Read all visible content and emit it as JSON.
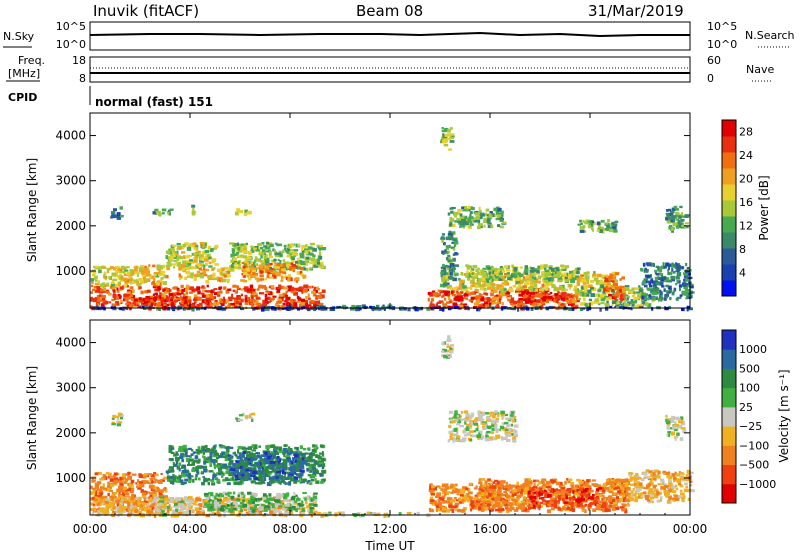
{
  "header": {
    "station": "Inuvik (fitACF)",
    "beam": "Beam 08",
    "date": "31/Mar/2019"
  },
  "status_panels": {
    "nsky_label": "N.Sky",
    "nsearch_label": "N.Search",
    "freq_label_line1": "Freq.",
    "freq_label_line2": "[MHz]",
    "nave_label": "Nave",
    "cpid_label": "CPID",
    "cpid_value": "normal (fast) 151",
    "noise_ticks_left": [
      "10^5",
      "10^0"
    ],
    "noise_ticks_right": [
      "10^5",
      "10^0"
    ],
    "freq_ticks": [
      "18",
      "8"
    ],
    "nave_ticks": [
      "60",
      "0"
    ]
  },
  "colors": {
    "power": [
      "#0010f0",
      "#1840b0",
      "#2a5a9a",
      "#3a8a6a",
      "#48aa50",
      "#a8c838",
      "#e8d030",
      "#f0a020",
      "#f07010",
      "#e83010",
      "#e00000"
    ],
    "velocity": [
      "#e00000",
      "#f04010",
      "#f08020",
      "#f0b020",
      "#c8c8c0",
      "#40b040",
      "#2e8a40",
      "#2a6aa0",
      "#2030c0"
    ]
  },
  "chart_data": [
    {
      "type": "heatmap",
      "quantity": "power",
      "xlabel": "",
      "ylabel": "Slant Range [km]",
      "x_ticks": [
        "00:00",
        "04:00",
        "08:00",
        "12:00",
        "16:00",
        "20:00",
        "00:00"
      ],
      "xlim_hours": [
        0,
        24
      ],
      "ylim_km": [
        180,
        4500
      ],
      "y_ticks": [
        1000,
        2000,
        3000,
        4000
      ],
      "colorbar_label": "Power [dB]",
      "colorbar_ticks": [
        4,
        8,
        12,
        16,
        20,
        24,
        28
      ],
      "colorbar_range": [
        0,
        30
      ],
      "regions": [
        {
          "t0": 0.0,
          "t1": 9.3,
          "r0": 200,
          "r1": 700,
          "value": 26
        },
        {
          "t0": 0.0,
          "t1": 3.0,
          "r0": 700,
          "r1": 1150,
          "value": 18
        },
        {
          "t0": 1.5,
          "t1": 4.0,
          "r0": 200,
          "r1": 450,
          "value": 28
        },
        {
          "t0": 3.0,
          "t1": 5.0,
          "r0": 1100,
          "r1": 1650,
          "value": 16
        },
        {
          "t0": 5.5,
          "t1": 9.3,
          "r0": 1050,
          "r1": 1650,
          "value": 14
        },
        {
          "t0": 6.0,
          "t1": 8.5,
          "r0": 800,
          "r1": 1200,
          "value": 22
        },
        {
          "t0": 3.5,
          "t1": 5.5,
          "r0": 800,
          "r1": 1100,
          "value": 20
        },
        {
          "t0": 0.8,
          "t1": 1.2,
          "r0": 2200,
          "r1": 2450,
          "value": 8
        },
        {
          "t0": 2.5,
          "t1": 3.2,
          "r0": 2250,
          "r1": 2400,
          "value": 12
        },
        {
          "t0": 4.0,
          "t1": 4.2,
          "r0": 2300,
          "r1": 2500,
          "value": 12
        },
        {
          "t0": 5.8,
          "t1": 6.4,
          "r0": 2300,
          "r1": 2400,
          "value": 16
        },
        {
          "t0": 9.0,
          "t1": 13.5,
          "r0": 190,
          "r1": 260,
          "value": 8
        },
        {
          "t0": 13.5,
          "t1": 19.5,
          "r0": 200,
          "r1": 600,
          "value": 26
        },
        {
          "t0": 17.0,
          "t1": 19.0,
          "r0": 350,
          "r1": 650,
          "value": 28
        },
        {
          "t0": 14.0,
          "t1": 21.0,
          "r0": 600,
          "r1": 1000,
          "value": 18
        },
        {
          "t0": 15.0,
          "t1": 19.5,
          "r0": 800,
          "r1": 1150,
          "value": 14
        },
        {
          "t0": 14.0,
          "t1": 14.6,
          "r0": 700,
          "r1": 1900,
          "value": 10
        },
        {
          "t0": 14.3,
          "t1": 16.5,
          "r0": 2000,
          "r1": 2450,
          "value": 12
        },
        {
          "t0": 19.5,
          "t1": 22.5,
          "r0": 250,
          "r1": 700,
          "value": 14
        },
        {
          "t0": 20.5,
          "t1": 21.3,
          "r0": 400,
          "r1": 900,
          "value": 24
        },
        {
          "t0": 22.0,
          "t1": 24.0,
          "r0": 400,
          "r1": 1200,
          "value": 8
        },
        {
          "t0": 19.5,
          "t1": 21.0,
          "r0": 1900,
          "r1": 2150,
          "value": 12
        },
        {
          "t0": 23.0,
          "t1": 23.8,
          "r0": 1900,
          "r1": 2450,
          "value": 10
        },
        {
          "t0": 14.0,
          "t1": 14.4,
          "r0": 3700,
          "r1": 4200,
          "value": 14
        },
        {
          "t0": 0.0,
          "t1": 24.0,
          "r0": 180,
          "r1": 230,
          "value": 4
        }
      ]
    },
    {
      "type": "heatmap",
      "quantity": "velocity",
      "xlabel": "Time UT",
      "ylabel": "Slant Range [km]",
      "x_ticks": [
        "00:00",
        "04:00",
        "08:00",
        "12:00",
        "16:00",
        "20:00",
        "00:00"
      ],
      "xlim_hours": [
        0,
        24
      ],
      "ylim_km": [
        180,
        4500
      ],
      "y_ticks": [
        1000,
        2000,
        3000,
        4000
      ],
      "colorbar_label": "Velocity [m s⁻¹]",
      "colorbar_ticks": [
        "1000",
        "500",
        "100",
        "25",
        "−25",
        "−100",
        "−500",
        "−1000"
      ],
      "regions": [
        {
          "t0": 0.0,
          "t1": 3.0,
          "r0": 300,
          "r1": 1150,
          "cls": 2
        },
        {
          "t0": 0.0,
          "t1": 9.0,
          "r0": 200,
          "r1": 600,
          "cls": 3
        },
        {
          "t0": 3.0,
          "t1": 9.3,
          "r0": 900,
          "r1": 1750,
          "cls": 6
        },
        {
          "t0": 4.5,
          "t1": 9.0,
          "r0": 300,
          "r1": 700,
          "cls": 5
        },
        {
          "t0": 2.5,
          "t1": 4.0,
          "r0": 200,
          "r1": 600,
          "cls": 4
        },
        {
          "t0": 5.5,
          "t1": 8.5,
          "r0": 1000,
          "r1": 1600,
          "cls": 7
        },
        {
          "t0": 9.0,
          "t1": 13.5,
          "r0": 190,
          "r1": 260,
          "cls": 4
        },
        {
          "t0": 13.5,
          "t1": 17.5,
          "r0": 300,
          "r1": 900,
          "cls": 2
        },
        {
          "t0": 15.5,
          "t1": 21.5,
          "r0": 300,
          "r1": 1000,
          "cls": 2
        },
        {
          "t0": 17.5,
          "t1": 20.5,
          "r0": 400,
          "r1": 800,
          "cls": 1
        },
        {
          "t0": 14.3,
          "t1": 17.0,
          "r0": 1850,
          "r1": 2500,
          "cls": 4
        },
        {
          "t0": 20.5,
          "t1": 21.5,
          "r0": 500,
          "r1": 1000,
          "cls": 2
        },
        {
          "t0": 21.5,
          "t1": 24.0,
          "r0": 500,
          "r1": 1200,
          "cls": 3
        },
        {
          "t0": 23.0,
          "t1": 23.7,
          "r0": 1900,
          "r1": 2400,
          "cls": 4
        },
        {
          "t0": 0.8,
          "t1": 1.2,
          "r0": 2200,
          "r1": 2450,
          "cls": 4
        },
        {
          "t0": 5.8,
          "t1": 6.5,
          "r0": 2300,
          "r1": 2450,
          "cls": 4
        },
        {
          "t0": 14.0,
          "t1": 14.4,
          "r0": 3700,
          "r1": 4200,
          "cls": 4
        }
      ]
    }
  ]
}
